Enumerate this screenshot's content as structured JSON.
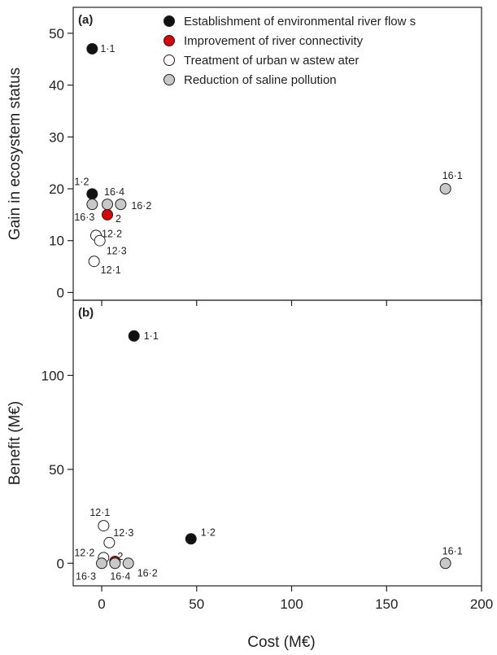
{
  "chart_data": {
    "type": "scatter",
    "xlabel": "Cost (M€)",
    "xlim": [
      -15,
      200
    ],
    "xticks": [
      0,
      50,
      100,
      150,
      200
    ],
    "series_styles": [
      {
        "key": "flows",
        "name": "Establishment of environmental river flow s",
        "fill": "#111111"
      },
      {
        "key": "connectivity",
        "name": "Improvement of river connectivity",
        "fill": "#e00000"
      },
      {
        "key": "wastewater",
        "name": "Treatment of urban w astew ater",
        "fill": "#ffffff"
      },
      {
        "key": "saline",
        "name": "Reduction of saline pollution",
        "fill": "#c8c8c8"
      }
    ],
    "panels": [
      {
        "panel_label": "(a)",
        "ylabel": "Gain in ecosystem status",
        "ylim": [
          -1.5,
          55
        ],
        "yticks": [
          0,
          10,
          20,
          30,
          40,
          50
        ],
        "points": [
          {
            "label": "1·1",
            "series": "flows",
            "x": -5,
            "y": 47
          },
          {
            "label": "1·2",
            "series": "flows",
            "x": -5,
            "y": 19
          },
          {
            "label": "2",
            "series": "connectivity",
            "x": 3,
            "y": 15
          },
          {
            "label": "12·1",
            "series": "wastewater",
            "x": -4,
            "y": 6
          },
          {
            "label": "12·2",
            "series": "wastewater",
            "x": -3,
            "y": 11
          },
          {
            "label": "12·3",
            "series": "wastewater",
            "x": -1,
            "y": 10
          },
          {
            "label": "16·1",
            "series": "saline",
            "x": 181,
            "y": 20
          },
          {
            "label": "16·2",
            "series": "saline",
            "x": 10,
            "y": 17
          },
          {
            "label": "16·3",
            "series": "saline",
            "x": -5,
            "y": 17
          },
          {
            "label": "16·4",
            "series": "saline",
            "x": 3,
            "y": 17
          }
        ]
      },
      {
        "panel_label": "(b)",
        "ylabel": "Benefit (M€)",
        "ylim": [
          -12,
          140
        ],
        "yticks": [
          0,
          50,
          100
        ],
        "points": [
          {
            "label": "1·1",
            "series": "flows",
            "x": 17,
            "y": 121
          },
          {
            "label": "1·2",
            "series": "flows",
            "x": 47,
            "y": 13
          },
          {
            "label": "2",
            "series": "connectivity",
            "x": 7,
            "y": 1
          },
          {
            "label": "12·1",
            "series": "wastewater",
            "x": 1,
            "y": 20
          },
          {
            "label": "12·2",
            "series": "wastewater",
            "x": 1,
            "y": 3
          },
          {
            "label": "12·3",
            "series": "wastewater",
            "x": 4,
            "y": 11
          },
          {
            "label": "16·1",
            "series": "saline",
            "x": 181,
            "y": 0
          },
          {
            "label": "16·2",
            "series": "saline",
            "x": 14,
            "y": 0
          },
          {
            "label": "16·3",
            "series": "saline",
            "x": 0,
            "y": 0
          },
          {
            "label": "16·4",
            "series": "saline",
            "x": 7,
            "y": 0
          }
        ]
      }
    ]
  }
}
